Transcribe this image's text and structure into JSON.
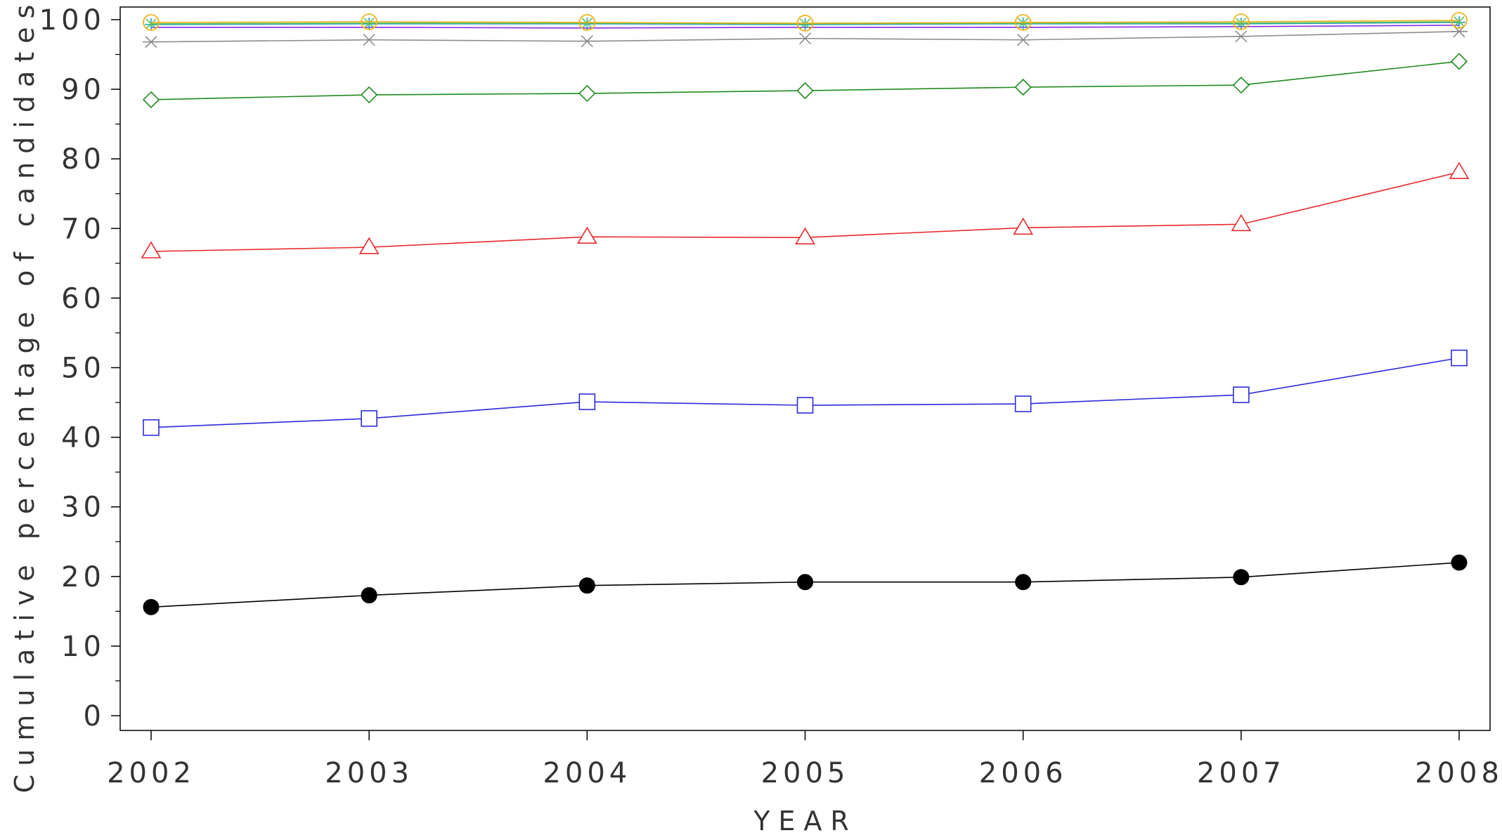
{
  "chart_data": {
    "type": "line",
    "title": "",
    "xlabel": "YEAR",
    "ylabel": "Cumulative percentage of candidates",
    "x": [
      "2002",
      "2003",
      "2004",
      "2005",
      "2006",
      "2007",
      "2008"
    ],
    "xlim": [
      2002,
      2008
    ],
    "ylim": [
      0,
      100
    ],
    "yticks": [
      0,
      10,
      20,
      30,
      40,
      50,
      60,
      70,
      80,
      90,
      100
    ],
    "grid": false,
    "legend": "none",
    "series": [
      {
        "marker": "filled-circle",
        "color": "#000000",
        "values": [
          15.6,
          17.3,
          18.7,
          19.2,
          19.2,
          19.9,
          22.0
        ]
      },
      {
        "marker": "square",
        "color": "#2b2bd9",
        "values": [
          41.4,
          42.7,
          45.1,
          44.6,
          44.8,
          46.1,
          51.4
        ]
      },
      {
        "marker": "triangle",
        "color": "#e8292c",
        "values": [
          66.7,
          67.3,
          68.8,
          68.7,
          70.1,
          70.6,
          78.1
        ]
      },
      {
        "marker": "diamond",
        "color": "#1e8a1e",
        "values": [
          88.5,
          89.2,
          89.4,
          89.8,
          90.3,
          90.6,
          94.0
        ]
      },
      {
        "marker": "asterisk",
        "color": "#8c8c8c",
        "values": [
          96.8,
          97.1,
          96.9,
          97.3,
          97.1,
          97.6,
          98.3
        ]
      },
      {
        "marker": "none",
        "color": "#8a2be2",
        "values": [
          98.9,
          98.9,
          98.8,
          98.9,
          98.9,
          99.0,
          99.2
        ]
      },
      {
        "marker": "plus",
        "color": "#20a0c0",
        "values": [
          99.3,
          99.4,
          99.4,
          99.3,
          99.4,
          99.4,
          99.6
        ]
      },
      {
        "marker": "x",
        "color": "#55c25a",
        "values": [
          99.4,
          99.5,
          99.5,
          99.4,
          99.5,
          99.5,
          99.7
        ]
      },
      {
        "marker": "circle",
        "color": "#f2b21c",
        "values": [
          99.6,
          99.7,
          99.6,
          99.5,
          99.6,
          99.7,
          99.9
        ]
      }
    ]
  }
}
